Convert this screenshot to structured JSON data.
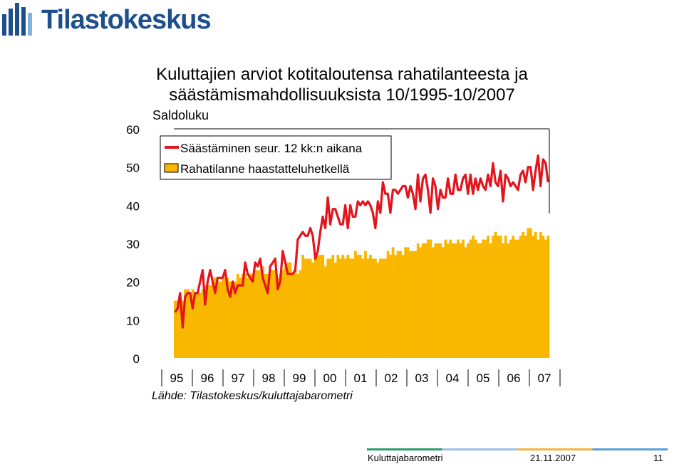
{
  "header": {
    "logo_text": "Tilastokeskus"
  },
  "title_line1": "Kuluttajien arviot kotitaloutensa rahatilanteesta ja",
  "title_line2": "säästämismahdollisuuksista 10/1995-10/2007",
  "ylabel": "Saldoluku",
  "source": "Lähde: Tilastokeskus/kuluttajabarometri",
  "footer": {
    "name": "Kuluttajabarometri",
    "date": "21.11.2007",
    "page": "11"
  },
  "colors": {
    "line": "#e3141c",
    "bars": "#f9b700",
    "logo": "#1c4f8c"
  },
  "chart_data": {
    "type": "bar",
    "title": "",
    "ylabel": "Saldoluku",
    "ylim": [
      0,
      60
    ],
    "yticks": [
      0,
      10,
      20,
      30,
      40,
      50,
      60
    ],
    "legend_position": "top-left",
    "x_tick_labels": [
      "95",
      "96",
      "97",
      "98",
      "99",
      "00",
      "01",
      "02",
      "03",
      "04",
      "05",
      "06",
      "07"
    ],
    "start_month": "1995-10",
    "end_month": "2007-10",
    "series": [
      {
        "name": "Säästäminen seur. 12 kk:n aikana",
        "type": "line",
        "values": [
          12,
          13,
          17,
          8,
          16,
          17,
          17,
          13,
          17,
          17,
          20,
          23,
          14,
          20,
          23,
          20,
          17,
          21,
          21,
          21,
          23,
          18,
          16,
          20,
          17,
          19,
          19,
          19,
          25,
          22,
          21,
          20,
          25,
          24,
          26,
          21,
          19,
          17,
          24,
          25,
          26,
          18,
          20,
          28,
          25,
          22,
          22,
          22,
          23,
          31,
          32,
          33,
          32,
          32,
          34,
          32,
          26,
          28,
          33,
          37,
          34,
          42,
          35,
          39,
          39,
          37,
          35,
          35,
          40,
          34,
          40,
          37,
          37,
          41,
          40,
          41,
          40,
          41,
          40,
          38,
          34,
          41,
          38,
          46,
          43,
          43,
          38,
          44,
          44,
          43,
          44,
          45,
          45,
          42,
          45,
          43,
          39,
          48,
          41,
          47,
          48,
          44,
          38,
          47,
          45,
          39,
          44,
          42,
          42,
          47,
          43,
          43,
          48,
          44,
          44,
          47,
          48,
          43,
          48,
          43,
          47,
          44,
          47,
          45,
          44,
          48,
          45,
          51,
          46,
          45,
          49,
          41,
          48,
          47,
          45,
          46,
          45,
          44,
          48,
          49,
          46,
          50,
          50,
          44,
          49,
          53,
          45,
          52,
          51,
          46
        ]
      },
      {
        "name": "Rahatilanne haastatteluhetkellä",
        "type": "bar",
        "values": [
          15,
          15,
          16,
          15,
          18,
          18,
          17,
          18,
          17,
          17,
          17,
          18,
          19,
          19,
          19,
          20,
          21,
          20,
          20,
          21,
          21,
          21,
          20,
          20,
          20,
          22,
          21,
          22,
          22,
          21,
          22,
          22,
          23,
          23,
          23,
          24,
          22,
          22,
          23,
          23,
          23,
          21,
          22,
          23,
          24,
          25,
          25,
          22,
          23,
          22,
          23,
          27,
          26,
          26,
          26,
          25,
          26,
          27,
          27,
          27,
          24,
          26,
          26,
          27,
          25,
          27,
          26,
          27,
          26,
          27,
          26,
          26,
          28,
          27,
          27,
          26,
          28,
          26,
          27,
          26,
          26,
          25,
          26,
          26,
          26,
          28,
          27,
          29,
          27,
          28,
          28,
          27,
          29,
          29,
          28,
          28,
          28,
          30,
          29,
          30,
          30,
          31,
          31,
          29,
          30,
          30,
          30,
          29,
          31,
          30,
          31,
          30,
          30,
          31,
          30,
          31,
          29,
          30,
          31,
          32,
          31,
          30,
          30,
          31,
          31,
          32,
          30,
          32,
          33,
          32,
          32,
          30,
          32,
          30,
          31,
          32,
          31,
          31,
          32,
          33,
          32,
          34,
          34,
          32,
          33,
          31,
          33,
          32,
          31,
          32
        ]
      }
    ]
  }
}
